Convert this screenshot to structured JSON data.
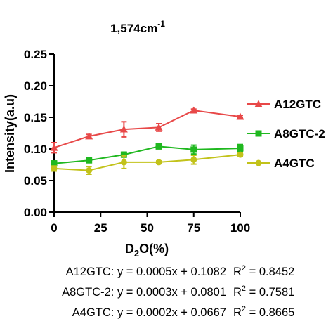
{
  "chart_data": {
    "type": "line",
    "title_main": "1,574cm",
    "title_sup": "-1",
    "xlabel_pre": "D",
    "xlabel_sub": "2",
    "xlabel_post": "O(%)",
    "ylabel": "Intensity(a.u)",
    "xlim": [
      0,
      100
    ],
    "ylim": [
      0,
      0.25
    ],
    "xticks": [
      0,
      25,
      50,
      75,
      100
    ],
    "xtick_labels": [
      "0",
      "25",
      "50",
      "75",
      "100"
    ],
    "yticks": [
      0,
      0.05,
      0.1,
      0.15,
      0.2,
      0.25
    ],
    "ytick_labels": [
      "0.00",
      "0.05",
      "0.10",
      "0.15",
      "0.20",
      "0.25"
    ],
    "grid": false,
    "legend_position": "right",
    "series": [
      {
        "name": "A12GTC",
        "legend_label": "A12GTC",
        "color": "#e84848",
        "marker": "triangle",
        "x": [
          0,
          18.75,
          37.5,
          56.25,
          75,
          100
        ],
        "y": [
          0.102,
          0.12,
          0.131,
          0.134,
          0.161,
          0.151
        ],
        "err": [
          0.008,
          0.003,
          0.012,
          0.006,
          0.002,
          0.002
        ]
      },
      {
        "name": "A8GTC-2",
        "legend_label": "A8GTC-2",
        "color": "#1fb81f",
        "marker": "square",
        "x": [
          0,
          18.75,
          37.5,
          56.25,
          75,
          100
        ],
        "y": [
          0.077,
          0.082,
          0.091,
          0.104,
          0.099,
          0.101
        ],
        "err": [
          0.004,
          0.003,
          0.004,
          0.003,
          0.007,
          0.006
        ]
      },
      {
        "name": "A4GTC",
        "legend_label": "A4GTC",
        "color": "#c2c21a",
        "marker": "circle",
        "x": [
          0,
          18.75,
          37.5,
          56.25,
          75,
          100
        ],
        "y": [
          0.069,
          0.066,
          0.079,
          0.079,
          0.083,
          0.091
        ],
        "err": [
          0.004,
          0.006,
          0.01,
          0.002,
          0.007,
          0.003
        ]
      }
    ]
  },
  "equations": [
    {
      "label": "A12GTC: y = 0.0005x + 0.1082",
      "r2_prefix": "R",
      "r2_sup": "2",
      "r2_value": " = 0.8452"
    },
    {
      "label": "A8GTC-2: y = 0.0003x + 0.0801",
      "r2_prefix": "R",
      "r2_sup": "2",
      "r2_value": " = 0.7581"
    },
    {
      "label": "A4GTC: y = 0.0002x + 0.0667",
      "r2_prefix": "R",
      "r2_sup": "2",
      "r2_value": " = 0.8665"
    }
  ]
}
